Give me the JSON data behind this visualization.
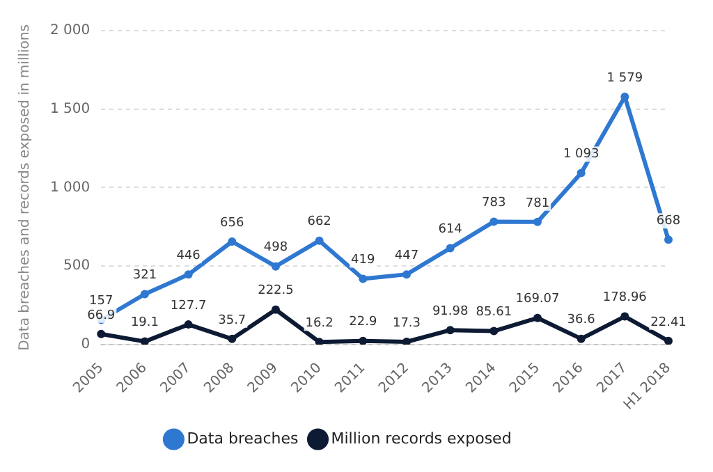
{
  "chart_data": {
    "type": "line",
    "ylabel": "Data breaches and records exposed in millions",
    "categories": [
      "2005",
      "2006",
      "2007",
      "2008",
      "2009",
      "2010",
      "2011",
      "2012",
      "2013",
      "2014",
      "2015",
      "2016",
      "2017",
      "H1 2018"
    ],
    "series": [
      {
        "name": "Data breaches",
        "color": "#2f78d1",
        "values": [
          157,
          321,
          446,
          656,
          498,
          662,
          419,
          447,
          614,
          783,
          781,
          1093,
          1579,
          668
        ],
        "value_labels": [
          "157",
          "321",
          "446",
          "656",
          "498",
          "662",
          "419",
          "447",
          "614",
          "783",
          "781",
          "1 093",
          "1 579",
          "668"
        ]
      },
      {
        "name": "Million records exposed",
        "color": "#0d1a33",
        "values": [
          66.9,
          19.1,
          127.7,
          35.7,
          222.5,
          16.2,
          22.9,
          17.3,
          91.98,
          85.61,
          169.07,
          36.6,
          178.96,
          22.41
        ],
        "value_labels": [
          "66.9",
          "19.1",
          "127.7",
          "35.7",
          "222.5",
          "16.2",
          "22.9",
          "17.3",
          "91.98",
          "85.61",
          "169.07",
          "36.6",
          "178.96",
          "22.41"
        ]
      }
    ],
    "ylim": [
      0,
      2000
    ],
    "yticks": [
      0,
      500,
      {
        "value": 1000,
        "label": "1 000"
      },
      {
        "value": 1500,
        "label": "1 500"
      },
      {
        "value": 2000,
        "label": "2 000"
      }
    ],
    "grid": "y",
    "legend": "bottom",
    "marker": "circle",
    "line_style": "solid"
  }
}
